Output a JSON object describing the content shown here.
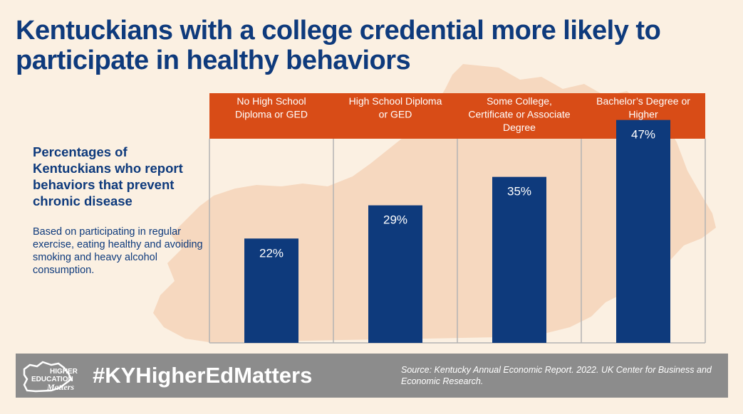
{
  "title": "Kentuckians with a college credential more likely to participate in healthy behaviors",
  "side_heading": "Percentages of Kentuckians who report behaviors that prevent chronic disease",
  "side_note": "Based on participating in regular exercise,  eating healthy and avoiding smoking and heavy alcohol consumption.",
  "footer": {
    "hashtag": "#KYHigherEdMatters",
    "source": "Source: Kentucky Annual Economic Report. 2022. UK Center for Business and Economic Research.",
    "logo_line1": "HIGHER",
    "logo_line2": "EDUCATION",
    "logo_line3": "Matters"
  },
  "colors": {
    "title": "#0e3a7c",
    "bar": "#0e3a7c",
    "header": "#d84c17",
    "background": "#fbf0e2",
    "map": "#f6d8bf",
    "footer": "#8c8c8c"
  },
  "chart_data": {
    "type": "bar",
    "categories": [
      "No High School Diploma or GED",
      "High School Diploma or GED",
      "Some College, Certificate or Associate Degree",
      "Bachelor’s Degree or Higher"
    ],
    "category_lines": [
      [
        "No High School",
        "Diploma or GED"
      ],
      [
        "High School Diploma",
        "or GED"
      ],
      [
        "Some College,",
        "Certificate or Associate",
        "Degree"
      ],
      [
        "Bachelor’s Degree or",
        "Higher"
      ]
    ],
    "values": [
      22,
      29,
      35,
      47
    ],
    "value_labels": [
      "22%",
      "29%",
      "35%",
      "47%"
    ],
    "ylim": [
      0,
      60
    ],
    "legend": "none",
    "grid": false
  }
}
